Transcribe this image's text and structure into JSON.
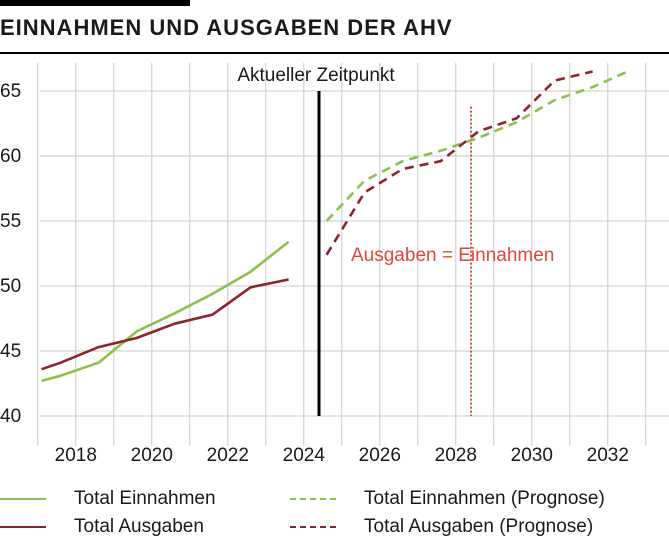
{
  "header": {
    "title": "EINNAHMEN UND AUSGABEN DER AHV"
  },
  "colors": {
    "einnahmen": "#8dc04a",
    "ausgaben": "#8c2430",
    "annotation_red": "#e0463a",
    "grid": "#c8c8c8",
    "marker": "#000000"
  },
  "chart_data": {
    "type": "line",
    "xlabel": "",
    "ylabel": "",
    "xlim": [
      2016.9,
      2033.9
    ],
    "ylim": [
      40,
      66
    ],
    "x_ticks": [
      2018,
      2020,
      2022,
      2024,
      2026,
      2028,
      2030,
      2032
    ],
    "y_ticks": [
      40,
      45,
      50,
      55,
      60,
      65
    ],
    "grid": "vertical and horizontal",
    "series": [
      {
        "name": "Total Einnahmen",
        "style": "solid",
        "color": "#8dc04a",
        "x": [
          2017.1,
          2017.6,
          2018.6,
          2019.6,
          2020.6,
          2021.6,
          2022.6,
          2023.6
        ],
        "y": [
          42.7,
          43.1,
          44.1,
          46.5,
          47.9,
          49.4,
          51.1,
          53.4
        ]
      },
      {
        "name": "Total Ausgaben",
        "style": "solid",
        "color": "#8c2430",
        "x": [
          2017.1,
          2017.6,
          2018.6,
          2019.6,
          2020.6,
          2021.6,
          2022.6,
          2023.6
        ],
        "y": [
          43.6,
          44.1,
          45.3,
          46.0,
          47.1,
          47.8,
          49.9,
          50.5
        ]
      },
      {
        "name": "Total Einnahmen (Prognose)",
        "style": "dashed",
        "color": "#8dc04a",
        "x": [
          2024.6,
          2025.6,
          2026.6,
          2027.6,
          2028.6,
          2029.6,
          2030.6,
          2031.6,
          2032.6
        ],
        "y": [
          55.0,
          58.1,
          59.6,
          60.4,
          61.4,
          62.6,
          64.3,
          65.3,
          66.6
        ]
      },
      {
        "name": "Total Ausgaben (Prognose)",
        "style": "dashed",
        "color": "#8c2430",
        "x": [
          2024.6,
          2025.6,
          2026.6,
          2027.6,
          2028.6,
          2029.6,
          2030.6,
          2031.6
        ],
        "y": [
          52.4,
          57.2,
          59.0,
          59.6,
          61.9,
          62.9,
          65.8,
          66.5
        ]
      }
    ],
    "annotations": [
      {
        "label": "Aktueller Zeitpunkt",
        "x": 2024.4,
        "style": "solid-black-vertical"
      },
      {
        "label": "Ausgaben = Einnahmen",
        "x": 2028.4,
        "style": "dotted-red-vertical"
      }
    ]
  },
  "legend": [
    {
      "label": "Total Einnahmen",
      "color": "#8dc04a",
      "style": "solid"
    },
    {
      "label": "Total Ausgaben",
      "color": "#8c2430",
      "style": "solid"
    },
    {
      "label": "Total Einnahmen (Prognose)",
      "color": "#8dc04a",
      "style": "dashed"
    },
    {
      "label": "Total Ausgaben (Prognose)",
      "color": "#8c2430",
      "style": "dashed"
    }
  ]
}
